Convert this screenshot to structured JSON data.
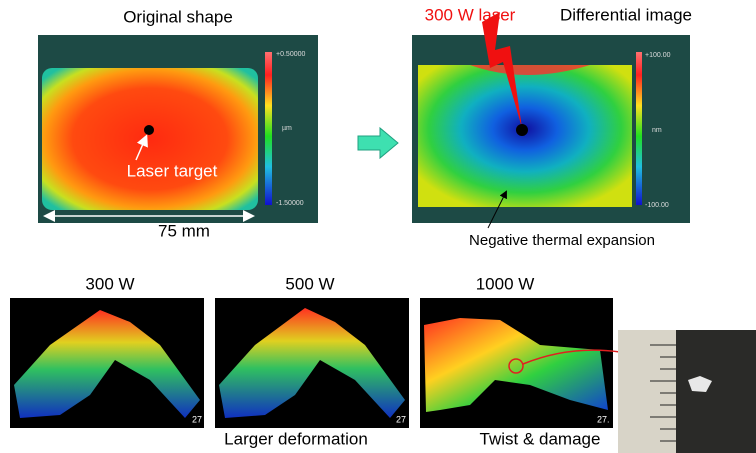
{
  "original": {
    "title": "Original shape",
    "colorbar_max": "+0.50000",
    "colorbar_unit": "µm",
    "colorbar_min": "-1.50000",
    "target_label": "Laser target",
    "scale_label": "75 mm"
  },
  "differential": {
    "laser_label": "300 W laser",
    "title": "Differential image",
    "colorbar_max": "+100.00",
    "colorbar_unit": "nm",
    "colorbar_min": "-100.00",
    "annotation": "Negative thermal expansion"
  },
  "plots": [
    {
      "title": "300 W",
      "axis_label": "27"
    },
    {
      "title": "500 W",
      "axis_label": "27"
    },
    {
      "title": "1000 W",
      "axis_label": "27."
    }
  ],
  "captions": [
    "Larger deformation",
    "Twist & damage"
  ]
}
